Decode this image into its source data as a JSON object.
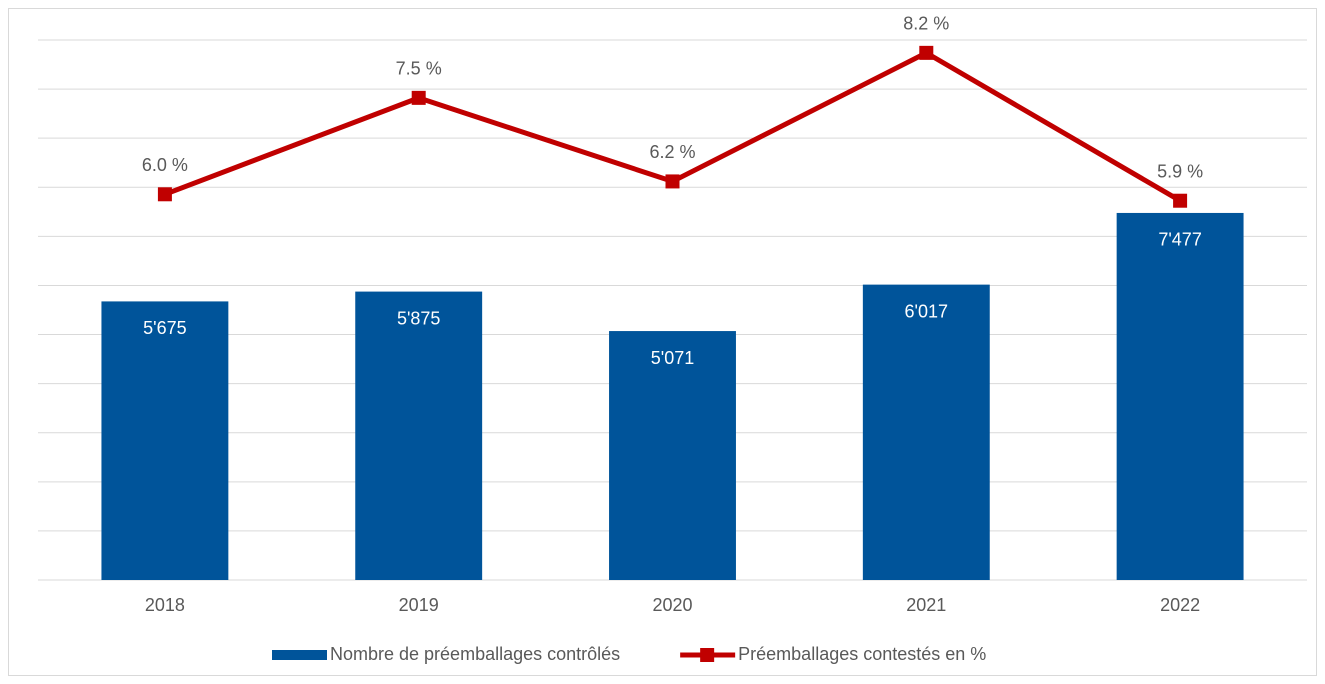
{
  "chart_data": {
    "type": "bar-line",
    "categories": [
      "2018",
      "2019",
      "2020",
      "2021",
      "2022"
    ],
    "series": [
      {
        "name": "Nombre de préemballages contrôlés",
        "type": "bar",
        "color": "#00549a",
        "values": [
          5675,
          5875,
          5071,
          6017,
          7477
        ],
        "value_labels": [
          "5'675",
          "5'875",
          "5'071",
          "6'017",
          "7'477"
        ]
      },
      {
        "name": "Préemballages contestés en %",
        "type": "line",
        "axis": "y2",
        "color": "#c00000",
        "values": [
          6.0,
          7.5,
          6.2,
          8.2,
          5.9
        ],
        "value_labels": [
          "6.0 %",
          "7.5 %",
          "6.2 %",
          "8.2 %",
          "5.9 %"
        ]
      }
    ],
    "ylim": [
      0,
      11000
    ],
    "yticks": [
      0,
      1000,
      2000,
      3000,
      4000,
      5000,
      6000,
      7000,
      8000,
      9000,
      10000,
      11000
    ],
    "y2lim": [
      0,
      8.4
    ],
    "grid": true,
    "legend": "bottom"
  }
}
